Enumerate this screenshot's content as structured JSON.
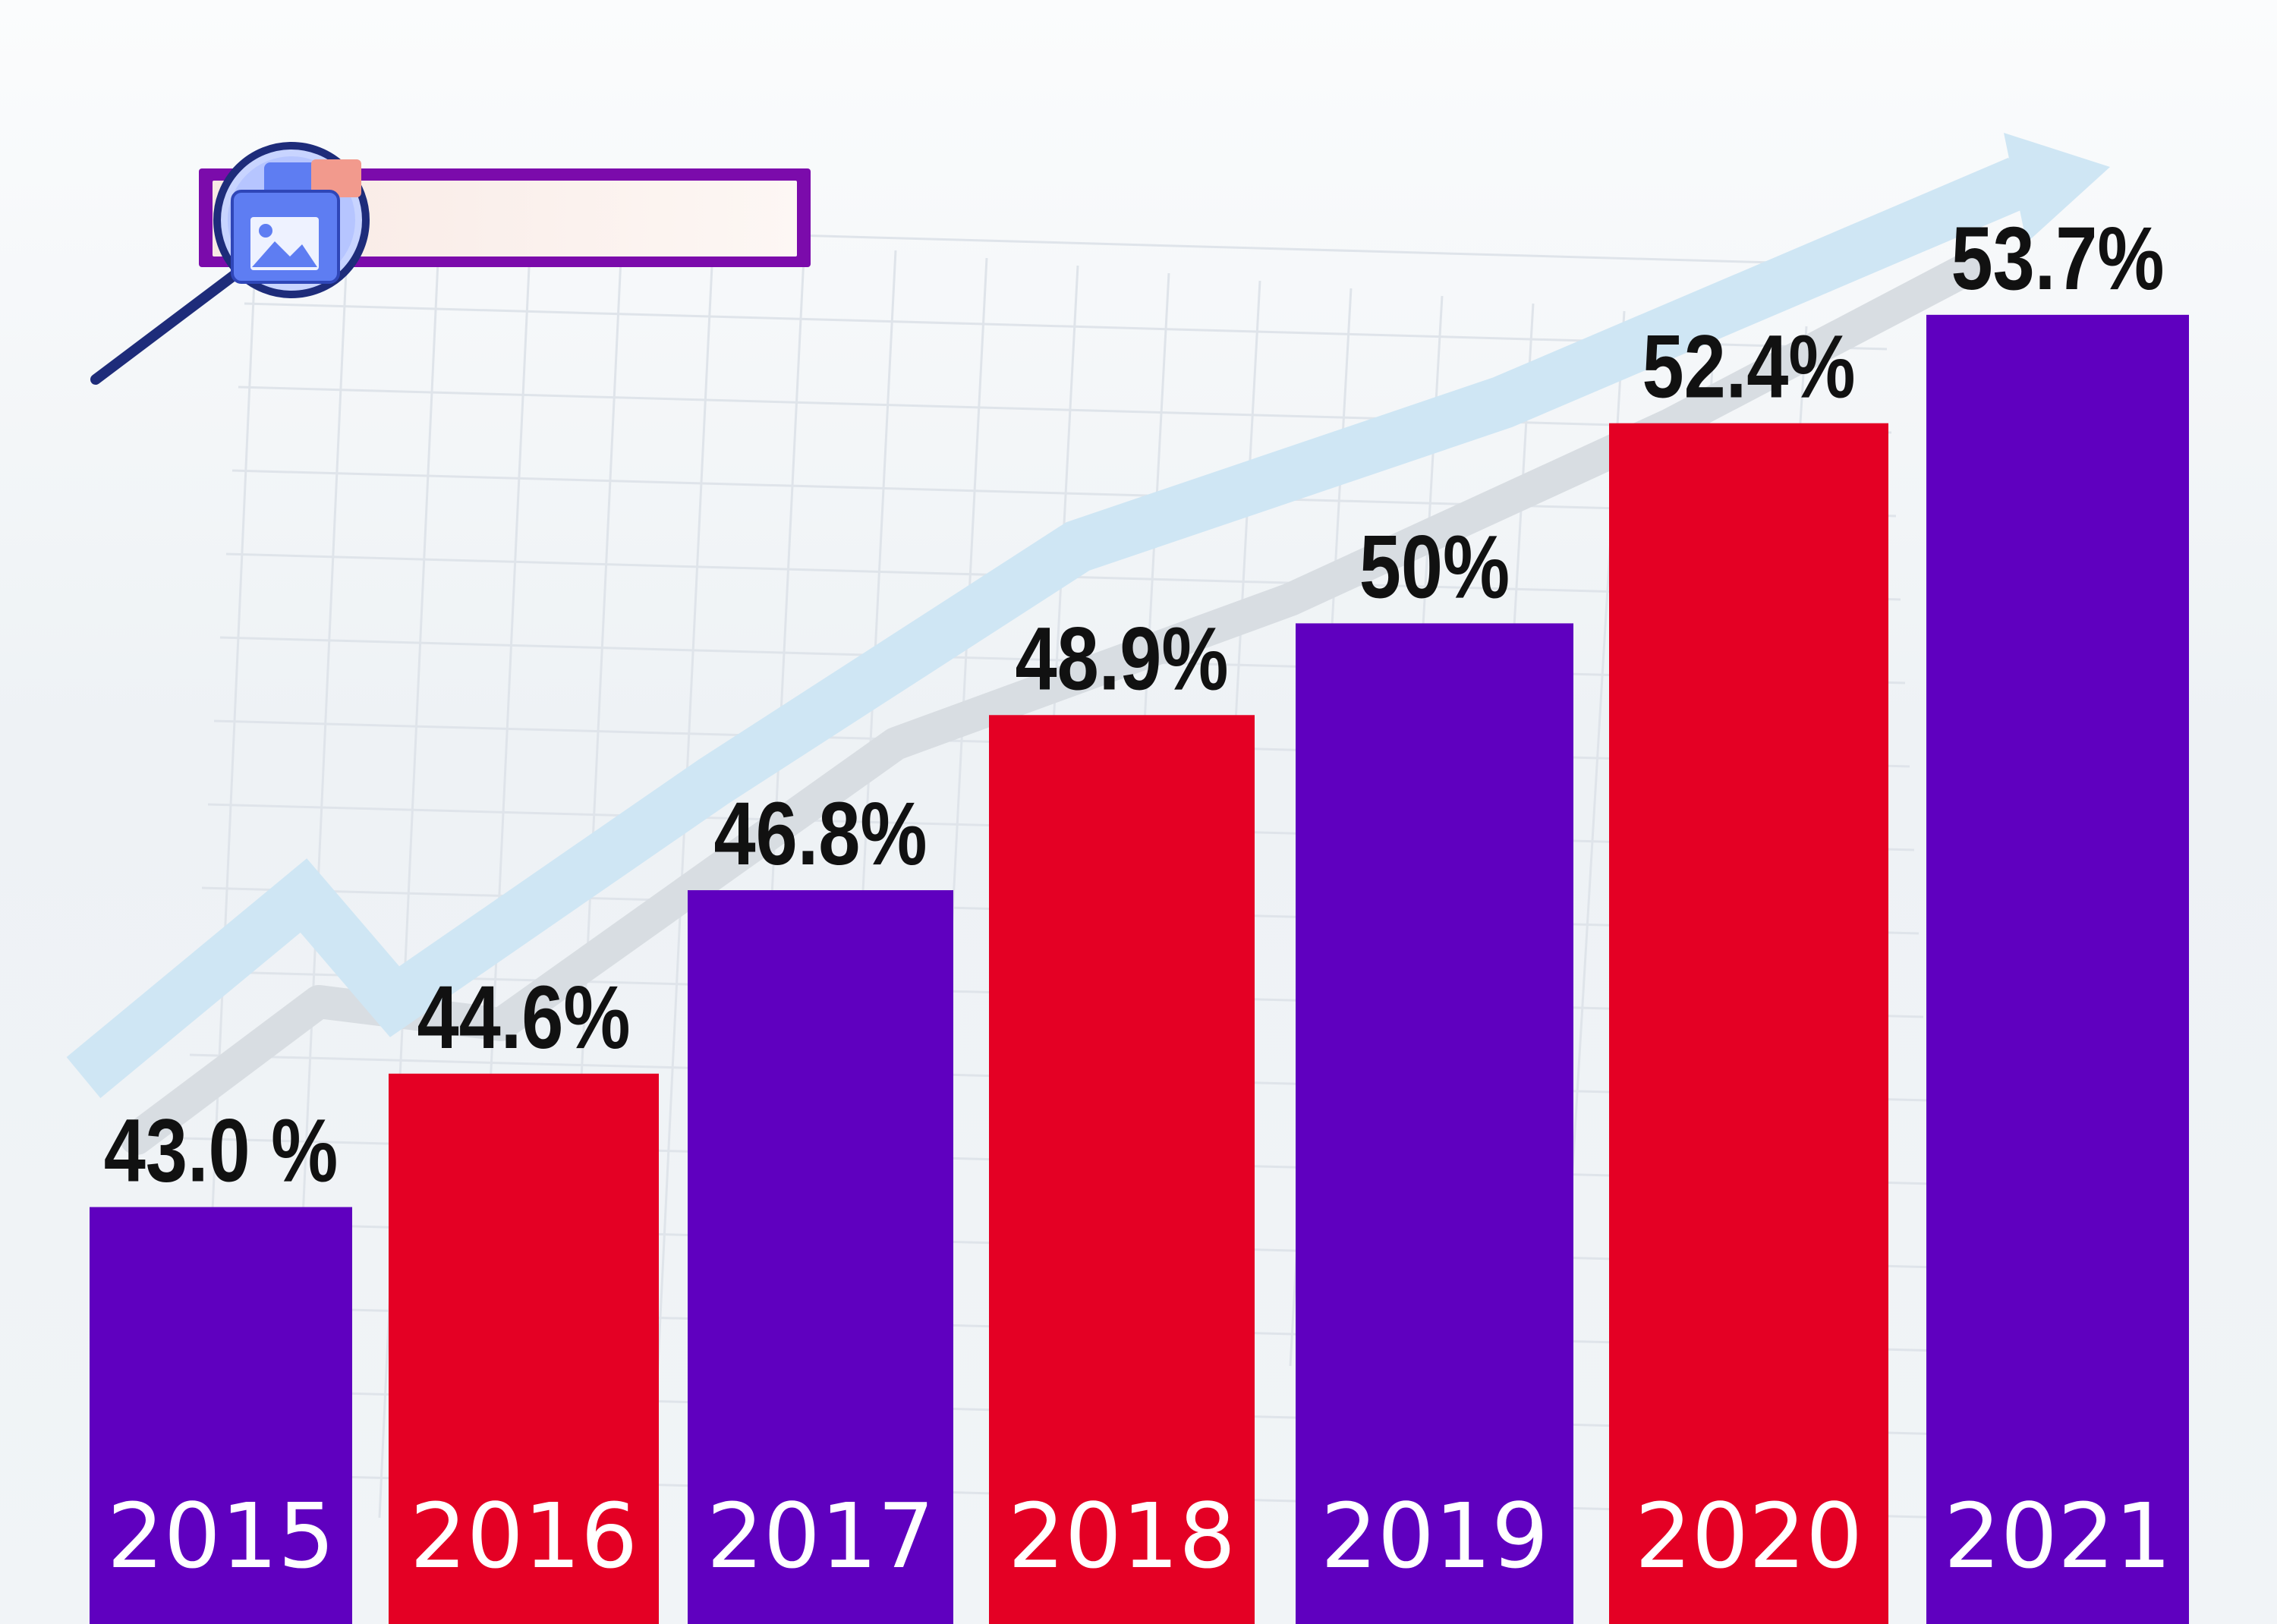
{
  "colors": {
    "purple": "#5f00bf",
    "red": "#e40024",
    "label_text": "#111111",
    "year_text": "#ffffff",
    "arrow": "#cfe6f4",
    "arrow_shadow": "#d6dbe0",
    "grid": "#dfe4ea",
    "search_box_border": "#7b0bab",
    "search_box_fill": "#fdf3ef"
  },
  "decorations": {
    "background_grid": true,
    "trend_arrow": true,
    "search_box_icon": "magnifier-over-image-icon"
  },
  "chart_data": {
    "type": "bar",
    "title": "",
    "xlabel": "",
    "ylabel": "",
    "categories": [
      "2015",
      "2016",
      "2017",
      "2018",
      "2019",
      "2020",
      "2021"
    ],
    "values": [
      43.0,
      44.6,
      46.8,
      48.9,
      50.0,
      52.4,
      53.7
    ],
    "value_labels": [
      "43.0 %",
      "44.6%",
      "46.8%",
      "48.9%",
      "50%",
      "52.4%",
      "53.7%"
    ],
    "bar_colors": [
      "#5f00bf",
      "#e40024",
      "#5f00bf",
      "#e40024",
      "#5f00bf",
      "#e40024",
      "#5f00bf"
    ],
    "ylim": [
      38,
      55
    ],
    "grid": false,
    "legend": "none"
  }
}
